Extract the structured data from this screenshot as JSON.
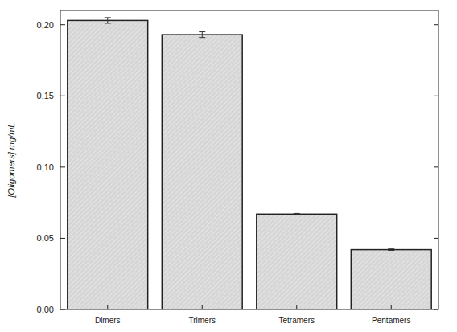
{
  "chart_data": {
    "type": "bar",
    "y_label": "[Oligomers] mg/mL",
    "categories": [
      "Dimers",
      "Trimers",
      "Tetramers",
      "Pentamers"
    ],
    "values": [
      0.203,
      0.193,
      0.067,
      0.042
    ],
    "errors": [
      0.002,
      0.002,
      0.0005,
      0.0005
    ],
    "color": "#d6d6d6",
    "ylim": [
      0,
      0.21
    ],
    "yticks": [
      {
        "value": 0,
        "label": "0,00"
      },
      {
        "value": 0.05,
        "label": "0,05"
      },
      {
        "value": 0.1,
        "label": "0,10"
      },
      {
        "value": 0.15,
        "label": "0,15"
      },
      {
        "value": 0.2,
        "label": "0,20"
      }
    ],
    "grid": false,
    "data_labels": false
  }
}
